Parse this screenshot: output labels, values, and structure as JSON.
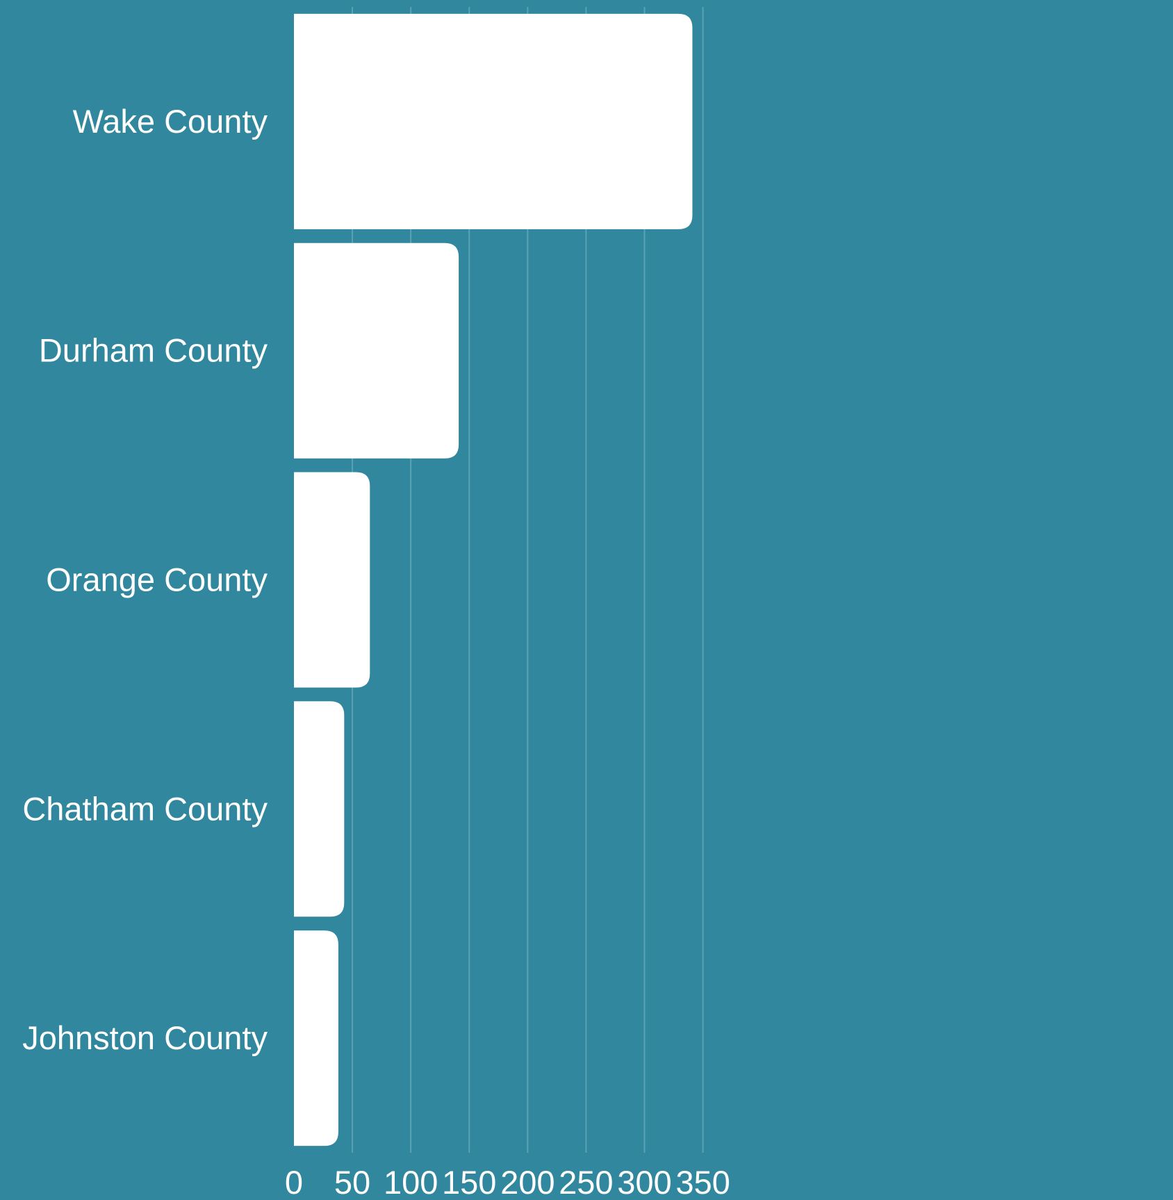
{
  "chart_data": {
    "type": "bar",
    "orientation": "horizontal",
    "categories": [
      "Wake County",
      "Durham County",
      "Orange County",
      "Chatham County",
      "Johnston County"
    ],
    "values": [
      341,
      141,
      65,
      43,
      38
    ],
    "xlim": [
      0,
      350
    ],
    "xticks": [
      "0",
      "50",
      "100",
      "150",
      "200",
      "250",
      "300",
      "350"
    ],
    "xtick_values": [
      0,
      50,
      100,
      150,
      200,
      250,
      300,
      350
    ],
    "grid": "vertical",
    "legend": "none",
    "colors": {
      "background": "#31879d",
      "bar": "#ffffff",
      "text": "#ffffff",
      "gridline": "#5aa2b4"
    }
  }
}
